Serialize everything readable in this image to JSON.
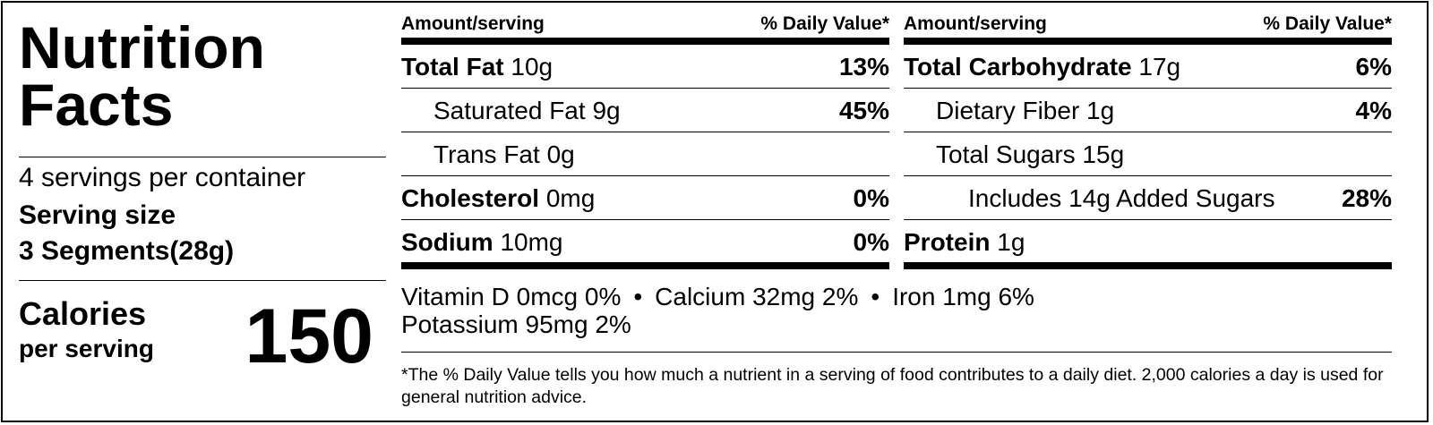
{
  "title_line1": "Nutrition",
  "title_line2": "Facts",
  "servings_per_container": "4 servings per container",
  "serving_size_label": "Serving size",
  "serving_size_value": "3 Segments(28g)",
  "calories_label": "Calories",
  "calories_sub": "per serving",
  "calories_value": "150",
  "header": {
    "amount": "Amount/serving",
    "dv": "% Daily Value*"
  },
  "left_rows": [
    {
      "name": "Total Fat",
      "amount": "10g",
      "dv": "13%"
    },
    {
      "name": "Saturated Fat",
      "amount": "9g",
      "dv": "45%"
    },
    {
      "name": "Trans Fat",
      "amount": "0g",
      "dv": ""
    },
    {
      "name": "Cholesterol",
      "amount": "0mg",
      "dv": "0%"
    },
    {
      "name": "Sodium",
      "amount": "10mg",
      "dv": "0%"
    }
  ],
  "right_rows": [
    {
      "name": "Total Carbohydrate",
      "amount": "17g",
      "dv": "6%"
    },
    {
      "name": "Dietary Fiber",
      "amount": "1g",
      "dv": "4%"
    },
    {
      "name": "Total Sugars",
      "amount": "15g",
      "dv": ""
    },
    {
      "name": "Includes 14g Added Sugars",
      "amount": "",
      "dv": "28%"
    },
    {
      "name": "Protein",
      "amount": "1g",
      "dv": ""
    }
  ],
  "vitamins": {
    "vitamin_d": "Vitamin D 0mcg 0%",
    "calcium": "Calcium 32mg 2%",
    "iron": "Iron 1mg 6%",
    "potassium": "Potassium 95mg 2%",
    "separator": "•"
  },
  "footnote": "*The % Daily Value tells you how much a nutrient in a serving of food contributes to a daily diet. 2,000 calories a day is used for general nutrition advice."
}
